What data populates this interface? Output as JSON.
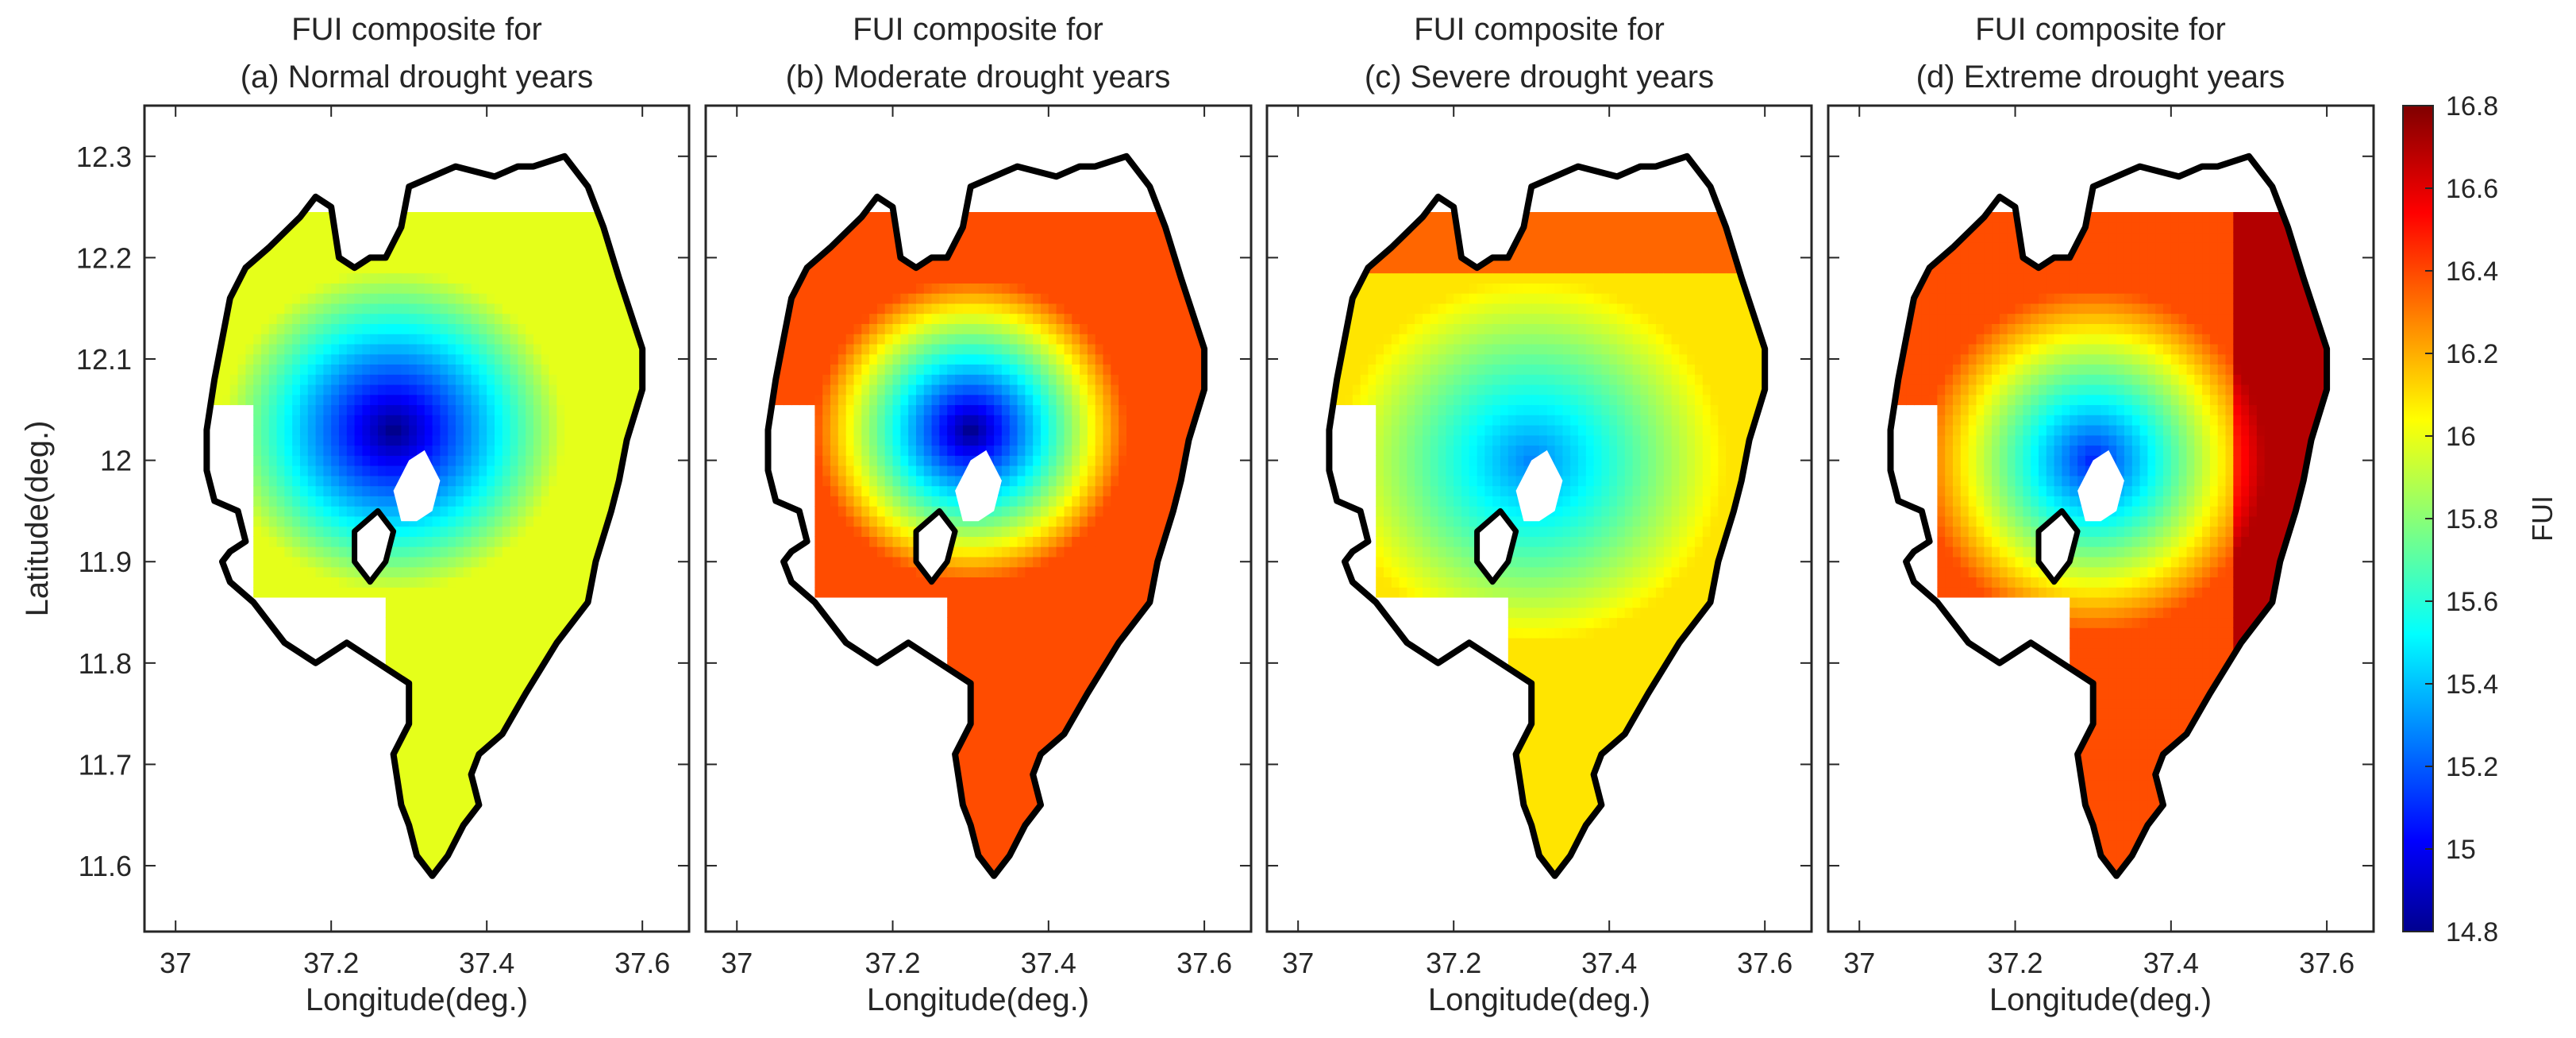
{
  "figure": {
    "shared_xlabel": "Longitude(deg.)",
    "shared_ylabel": "Latitude(deg.)",
    "x_ticks": [
      37,
      37.2,
      37.4,
      37.6
    ],
    "y_ticks": [
      11.6,
      11.7,
      11.8,
      11.9,
      12,
      12.1,
      12.2,
      12.3
    ],
    "xlim": [
      36.96,
      37.66
    ],
    "ylim": [
      11.535,
      12.35
    ],
    "lake_outline_color": "#000000",
    "colormap": "jet"
  },
  "colorbar": {
    "label": "FUI",
    "min": 14.8,
    "max": 16.8,
    "ticks": [
      14.8,
      15,
      15.2,
      15.4,
      15.6,
      15.8,
      16,
      16.2,
      16.4,
      16.6,
      16.8
    ]
  },
  "chart_data": [
    {
      "type": "heatmap",
      "title_line1": "FUI composite for",
      "title_line2": "(a) Normal drought years",
      "xlabel": "Longitude(deg.)",
      "ylabel": "Latitude(deg.)",
      "xlim": [
        36.96,
        37.66
      ],
      "ylim": [
        11.535,
        12.35
      ],
      "fui_range": [
        14.8,
        16.0
      ]
    },
    {
      "type": "heatmap",
      "title_line1": "FUI composite for",
      "title_line2": "(b) Moderate drought years",
      "xlabel": "Longitude(deg.)",
      "ylabel": "",
      "xlim": [
        36.96,
        37.66
      ],
      "ylim": [
        11.535,
        12.35
      ],
      "fui_range": [
        14.8,
        16.4
      ]
    },
    {
      "type": "heatmap",
      "title_line1": "FUI composite for",
      "title_line2": "(c) Severe drought years",
      "xlabel": "Longitude(deg.)",
      "ylabel": "",
      "xlim": [
        36.96,
        37.66
      ],
      "ylim": [
        11.535,
        12.35
      ],
      "fui_range": [
        15.3,
        16.1
      ]
    },
    {
      "type": "heatmap",
      "title_line1": "FUI composite for",
      "title_line2": "(d) Extreme drought years",
      "xlabel": "Longitude(deg.)",
      "ylabel": "",
      "xlim": [
        36.96,
        37.66
      ],
      "ylim": [
        11.535,
        12.35
      ],
      "fui_range": [
        15.1,
        16.5
      ]
    }
  ]
}
